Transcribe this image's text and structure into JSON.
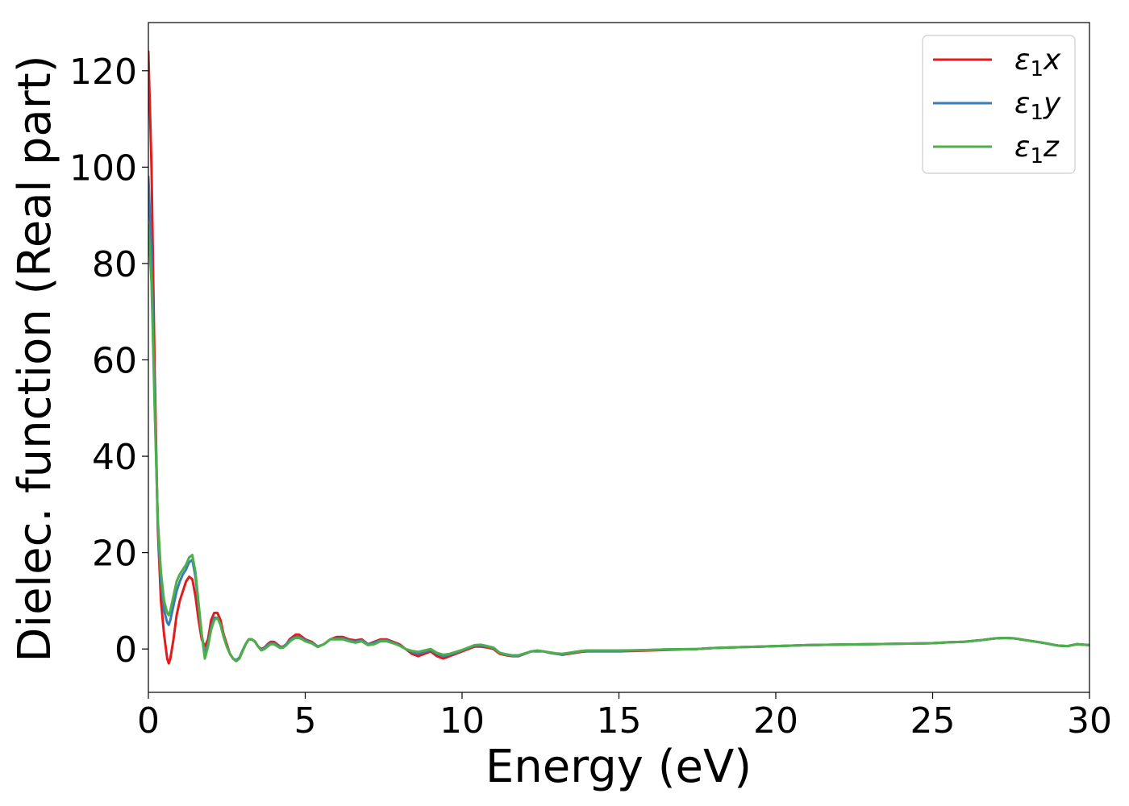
{
  "chart_data": {
    "type": "line",
    "xlabel": "Energy (eV)",
    "ylabel": "Dielec. function (Real part)",
    "xlim": [
      0,
      30
    ],
    "ylim": [
      -9,
      130
    ],
    "xticks": [
      0,
      5,
      10,
      15,
      20,
      25,
      30
    ],
    "yticks": [
      0,
      20,
      40,
      60,
      80,
      100,
      120
    ],
    "grid": false,
    "legend_position": "top-right",
    "series": [
      {
        "name": "ε₁x",
        "legend": {
          "base": "ε",
          "sub": "1",
          "suffix": "x"
        },
        "color": "#e41a1c",
        "x": [
          0,
          0.1,
          0.2,
          0.3,
          0.4,
          0.5,
          0.6,
          0.65,
          0.7,
          0.8,
          0.9,
          1.0,
          1.1,
          1.2,
          1.3,
          1.4,
          1.5,
          1.6,
          1.7,
          1.8,
          1.9,
          2.0,
          2.1,
          2.2,
          2.3,
          2.4,
          2.5,
          2.6,
          2.7,
          2.8,
          2.9,
          3.0,
          3.1,
          3.2,
          3.3,
          3.4,
          3.5,
          3.6,
          3.7,
          3.8,
          3.9,
          4.0,
          4.1,
          4.2,
          4.3,
          4.4,
          4.5,
          4.6,
          4.7,
          4.8,
          4.9,
          5.0,
          5.2,
          5.4,
          5.6,
          5.8,
          6.0,
          6.2,
          6.4,
          6.6,
          6.8,
          7.0,
          7.2,
          7.4,
          7.6,
          7.8,
          8.0,
          8.2,
          8.4,
          8.6,
          8.8,
          9.0,
          9.2,
          9.4,
          9.6,
          9.8,
          10.0,
          10.2,
          10.4,
          10.6,
          10.8,
          11.0,
          11.2,
          11.4,
          11.6,
          11.8,
          12.0,
          12.2,
          12.4,
          12.6,
          12.8,
          13.0,
          13.2,
          13.4,
          13.6,
          13.8,
          14.0,
          14.5,
          15.0,
          15.5,
          16.0,
          16.5,
          17.0,
          17.5,
          18.0,
          18.5,
          19.0,
          19.5,
          20.0,
          21.0,
          22.0,
          23.0,
          24.0,
          25.0,
          25.5,
          26.0,
          26.5,
          27.0,
          27.3,
          27.6,
          28.0,
          28.5,
          29.0,
          29.3,
          29.6,
          30.0
        ],
        "y": [
          124,
          100,
          58,
          25,
          10,
          3,
          -2,
          -3,
          -2,
          2,
          7,
          10,
          12,
          14,
          15,
          14.5,
          11,
          6,
          2,
          0.5,
          2,
          6,
          7.5,
          7.5,
          6,
          3,
          1,
          -1,
          -2,
          -2.5,
          -2,
          -0.5,
          1,
          2,
          2,
          1.5,
          0.5,
          0,
          0.3,
          1,
          1.5,
          1.5,
          1,
          0.5,
          0.5,
          1,
          2,
          2.5,
          3,
          3,
          2.5,
          2,
          1.5,
          0.5,
          1,
          2,
          2.5,
          2.5,
          2,
          1.8,
          2,
          1,
          1.5,
          2,
          2,
          1.5,
          1,
          0,
          -1,
          -1.5,
          -1,
          -0.5,
          -1.5,
          -2,
          -1.5,
          -1,
          -0.5,
          0,
          0.5,
          0.5,
          0.3,
          0,
          -1,
          -1.3,
          -1.5,
          -1.5,
          -1,
          -0.5,
          -0.5,
          -0.5,
          -0.8,
          -1,
          -1.2,
          -1,
          -0.8,
          -0.6,
          -0.5,
          -0.5,
          -0.5,
          -0.4,
          -0.3,
          -0.2,
          -0.1,
          0,
          0.2,
          0.3,
          0.4,
          0.5,
          0.6,
          0.8,
          0.9,
          1.0,
          1.1,
          1.2,
          1.4,
          1.5,
          1.8,
          2.2,
          2.3,
          2.2,
          1.8,
          1.3,
          0.7,
          0.6,
          1.0,
          0.8
        ]
      },
      {
        "name": "ε₁y",
        "legend": {
          "base": "ε",
          "sub": "1",
          "suffix": "y"
        },
        "color": "#377eb8",
        "x": [
          0,
          0.1,
          0.2,
          0.3,
          0.4,
          0.5,
          0.6,
          0.65,
          0.7,
          0.8,
          0.9,
          1.0,
          1.1,
          1.2,
          1.3,
          1.4,
          1.5,
          1.6,
          1.7,
          1.8,
          1.9,
          2.0,
          2.1,
          2.2,
          2.3,
          2.4,
          2.5,
          2.6,
          2.7,
          2.8,
          2.9,
          3.0,
          3.1,
          3.2,
          3.3,
          3.4,
          3.5,
          3.6,
          3.7,
          3.8,
          3.9,
          4.0,
          4.1,
          4.2,
          4.3,
          4.4,
          4.5,
          4.6,
          4.7,
          4.8,
          4.9,
          5.0,
          5.2,
          5.4,
          5.6,
          5.8,
          6.0,
          6.2,
          6.4,
          6.6,
          6.8,
          7.0,
          7.2,
          7.4,
          7.6,
          7.8,
          8.0,
          8.2,
          8.4,
          8.6,
          8.8,
          9.0,
          9.2,
          9.4,
          9.6,
          9.8,
          10.0,
          10.2,
          10.4,
          10.6,
          10.8,
          11.0,
          11.2,
          11.4,
          11.6,
          11.8,
          12.0,
          12.2,
          12.4,
          12.6,
          12.8,
          13.0,
          13.2,
          13.4,
          13.6,
          13.8,
          14.0,
          14.5,
          15.0,
          15.5,
          16.0,
          16.5,
          17.0,
          17.5,
          18.0,
          18.5,
          19.0,
          19.5,
          20.0,
          21.0,
          22.0,
          23.0,
          24.0,
          25.0,
          25.5,
          26.0,
          26.5,
          27.0,
          27.3,
          27.6,
          28.0,
          28.5,
          29.0,
          29.3,
          29.6,
          30.0
        ],
        "y": [
          98,
          82,
          52,
          26,
          14,
          8,
          5.5,
          5,
          6,
          9,
          12,
          14,
          15.5,
          16.5,
          18,
          18.5,
          15,
          9,
          3,
          -1,
          1,
          4.5,
          6.5,
          6.5,
          5,
          2.5,
          0.5,
          -1,
          -2,
          -2.3,
          -1.8,
          -0.3,
          1,
          2,
          2,
          1.5,
          0.5,
          -0.2,
          0.2,
          0.8,
          1.2,
          1.2,
          0.8,
          0.4,
          0.5,
          1,
          1.8,
          2.2,
          2.5,
          2.5,
          2.2,
          1.8,
          1.3,
          0.5,
          1,
          2,
          2.2,
          2.2,
          1.8,
          1.5,
          1.8,
          1,
          1.3,
          1.8,
          1.8,
          1.3,
          0.8,
          0,
          -0.6,
          -1,
          -0.6,
          -0.2,
          -1,
          -1.5,
          -1.2,
          -0.8,
          -0.3,
          0.2,
          0.7,
          0.7,
          0.5,
          0.2,
          -0.8,
          -1.2,
          -1.4,
          -1.4,
          -1,
          -0.5,
          -0.4,
          -0.5,
          -0.8,
          -1,
          -1.1,
          -0.9,
          -0.7,
          -0.5,
          -0.4,
          -0.4,
          -0.4,
          -0.3,
          -0.2,
          -0.1,
          -0.05,
          0,
          0.2,
          0.3,
          0.4,
          0.5,
          0.6,
          0.8,
          0.9,
          1.0,
          1.1,
          1.2,
          1.4,
          1.5,
          1.8,
          2.2,
          2.3,
          2.2,
          1.8,
          1.3,
          0.7,
          0.6,
          1.0,
          0.8
        ]
      },
      {
        "name": "ε₁z",
        "legend": {
          "base": "ε",
          "sub": "1",
          "suffix": "z"
        },
        "color": "#4daf4a",
        "x": [
          0,
          0.1,
          0.2,
          0.3,
          0.4,
          0.5,
          0.6,
          0.65,
          0.7,
          0.8,
          0.9,
          1.0,
          1.1,
          1.2,
          1.3,
          1.4,
          1.5,
          1.6,
          1.7,
          1.8,
          1.9,
          2.0,
          2.1,
          2.2,
          2.3,
          2.4,
          2.5,
          2.6,
          2.7,
          2.8,
          2.9,
          3.0,
          3.1,
          3.2,
          3.3,
          3.4,
          3.5,
          3.6,
          3.7,
          3.8,
          3.9,
          4.0,
          4.1,
          4.2,
          4.3,
          4.4,
          4.5,
          4.6,
          4.7,
          4.8,
          4.9,
          5.0,
          5.2,
          5.4,
          5.6,
          5.8,
          6.0,
          6.2,
          6.4,
          6.6,
          6.8,
          7.0,
          7.2,
          7.4,
          7.6,
          7.8,
          8.0,
          8.2,
          8.4,
          8.6,
          8.8,
          9.0,
          9.2,
          9.4,
          9.6,
          9.8,
          10.0,
          10.2,
          10.4,
          10.6,
          10.8,
          11.0,
          11.2,
          11.4,
          11.6,
          11.8,
          12.0,
          12.2,
          12.4,
          12.6,
          12.8,
          13.0,
          13.2,
          13.4,
          13.6,
          13.8,
          14.0,
          14.5,
          15.0,
          15.5,
          16.0,
          16.5,
          17.0,
          17.5,
          18.0,
          18.5,
          19.0,
          19.5,
          20.0,
          21.0,
          22.0,
          23.0,
          24.0,
          25.0,
          25.5,
          26.0,
          26.5,
          27.0,
          27.3,
          27.6,
          28.0,
          28.5,
          29.0,
          29.3,
          29.6,
          30.0
        ],
        "y": [
          88,
          76,
          50,
          27,
          16,
          10,
          7.5,
          7,
          8,
          11,
          14,
          15.5,
          16.5,
          17.5,
          19,
          19.5,
          16,
          9.5,
          3,
          -2,
          0.5,
          4,
          6,
          6.5,
          5,
          2.5,
          0.5,
          -1,
          -2,
          -2.5,
          -2,
          -0.5,
          1,
          2,
          2,
          1.5,
          0.5,
          -0.3,
          0,
          0.5,
          1,
          1,
          0.6,
          0.2,
          0.3,
          0.8,
          1.5,
          2,
          2.3,
          2.3,
          2,
          1.6,
          1.2,
          0.4,
          1,
          2,
          2,
          2,
          1.6,
          1.3,
          1.6,
          0.8,
          1,
          1.6,
          1.6,
          1.2,
          0.7,
          0,
          -0.4,
          -0.6,
          -0.3,
          0,
          -0.8,
          -1.2,
          -1,
          -0.6,
          -0.2,
          0.3,
          0.8,
          0.9,
          0.6,
          0.3,
          -0.8,
          -1.1,
          -1.3,
          -1.3,
          -0.9,
          -0.5,
          -0.3,
          -0.5,
          -0.7,
          -0.9,
          -1,
          -0.8,
          -0.6,
          -0.4,
          -0.3,
          -0.3,
          -0.3,
          -0.25,
          -0.2,
          -0.1,
          -0.05,
          0,
          0.2,
          0.3,
          0.4,
          0.5,
          0.6,
          0.8,
          0.9,
          1.0,
          1.1,
          1.2,
          1.4,
          1.5,
          1.8,
          2.2,
          2.3,
          2.2,
          1.8,
          1.3,
          0.7,
          0.6,
          1.0,
          0.8
        ]
      }
    ]
  }
}
